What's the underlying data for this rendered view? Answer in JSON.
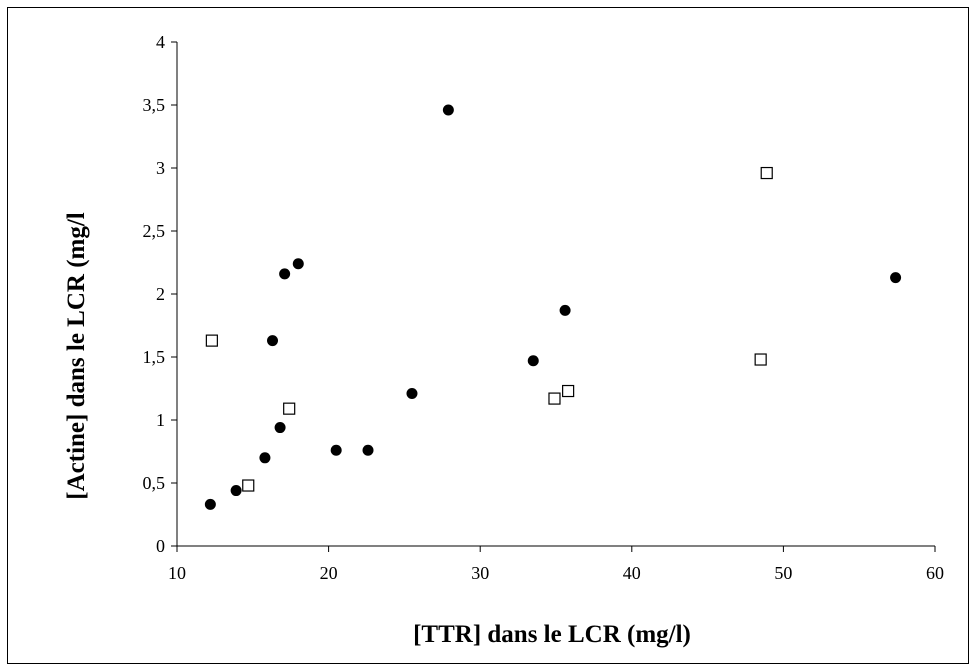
{
  "chart_data": {
    "type": "scatter",
    "title": "",
    "xlabel": "[TTR] dans le LCR (mg/l)",
    "ylabel": "[Actine] dans le LCR (mg/l",
    "xlim": [
      10,
      60
    ],
    "ylim": [
      0,
      4
    ],
    "x_ticks": [
      10,
      20,
      30,
      40,
      50,
      60
    ],
    "x_tick_labels": [
      "10",
      "20",
      "30",
      "40",
      "50",
      "60"
    ],
    "y_ticks": [
      0,
      0.5,
      1,
      1.5,
      2,
      2.5,
      3,
      3.5,
      4
    ],
    "y_tick_labels": [
      "0",
      "0,5",
      "1",
      "1,5",
      "2",
      "2,5",
      "3",
      "3,5",
      "4"
    ],
    "grid": false,
    "legend": "none",
    "series": [
      {
        "marker": "filled-circle",
        "color": "#000000",
        "points": [
          {
            "x": 12.2,
            "y": 0.33
          },
          {
            "x": 13.9,
            "y": 0.44
          },
          {
            "x": 15.8,
            "y": 0.7
          },
          {
            "x": 16.3,
            "y": 1.63
          },
          {
            "x": 16.8,
            "y": 0.94
          },
          {
            "x": 17.1,
            "y": 2.16
          },
          {
            "x": 18.0,
            "y": 2.24
          },
          {
            "x": 20.5,
            "y": 0.76
          },
          {
            "x": 22.6,
            "y": 0.76
          },
          {
            "x": 25.5,
            "y": 1.21
          },
          {
            "x": 27.9,
            "y": 3.46
          },
          {
            "x": 33.5,
            "y": 1.47
          },
          {
            "x": 35.6,
            "y": 1.87
          },
          {
            "x": 57.4,
            "y": 2.13
          }
        ]
      },
      {
        "marker": "open-square",
        "color": "#000000",
        "points": [
          {
            "x": 12.3,
            "y": 1.63
          },
          {
            "x": 14.7,
            "y": 0.48
          },
          {
            "x": 17.4,
            "y": 1.09
          },
          {
            "x": 34.9,
            "y": 1.17
          },
          {
            "x": 35.8,
            "y": 1.23
          },
          {
            "x": 48.5,
            "y": 1.48
          },
          {
            "x": 48.9,
            "y": 2.96
          }
        ]
      }
    ]
  }
}
